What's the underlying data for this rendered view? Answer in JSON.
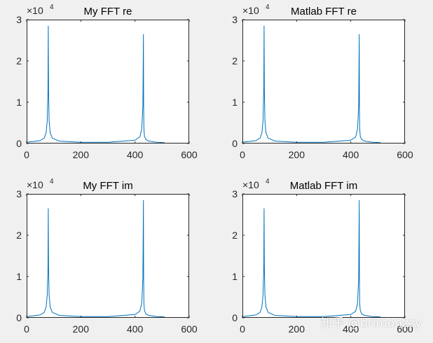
{
  "chart_data": [
    {
      "type": "line",
      "title": "My FFT re",
      "exponent_label": "×10",
      "exponent_power": "4",
      "xlim": [
        0,
        600
      ],
      "ylim": [
        0,
        30000
      ],
      "xticks": [
        "0",
        "200",
        "400",
        "600"
      ],
      "yticks": [
        "0",
        "1",
        "2",
        "3"
      ],
      "line_color": "#0072BD",
      "series": [
        {
          "name": "My FFT re",
          "x": [
            0,
            50,
            65,
            72,
            76,
            79,
            80,
            81,
            83,
            87,
            95,
            120,
            200,
            300,
            400,
            418,
            425,
            429,
            431,
            432,
            433,
            435,
            440,
            450,
            480,
            510
          ],
          "y": [
            300,
            700,
            1300,
            2600,
            5500,
            13000,
            28500,
            13000,
            5500,
            2600,
            1300,
            600,
            300,
            300,
            800,
            1600,
            3500,
            9000,
            26500,
            9000,
            3500,
            1800,
            1000,
            600,
            300,
            200
          ]
        }
      ]
    },
    {
      "type": "line",
      "title": "Matlab FFT re",
      "exponent_label": "×10",
      "exponent_power": "4",
      "xlim": [
        0,
        600
      ],
      "ylim": [
        0,
        30000
      ],
      "xticks": [
        "0",
        "200",
        "400",
        "600"
      ],
      "yticks": [
        "0",
        "1",
        "2",
        "3"
      ],
      "line_color": "#0072BD",
      "series": [
        {
          "name": "Matlab FFT re",
          "x": [
            0,
            50,
            65,
            72,
            76,
            79,
            80,
            81,
            83,
            87,
            95,
            120,
            200,
            300,
            400,
            418,
            425,
            429,
            431,
            432,
            433,
            435,
            440,
            450,
            480,
            510
          ],
          "y": [
            300,
            700,
            1300,
            2600,
            5500,
            13000,
            28500,
            13000,
            5500,
            2600,
            1300,
            600,
            300,
            300,
            800,
            1600,
            3500,
            9000,
            26500,
            9000,
            3500,
            1800,
            1000,
            600,
            300,
            200
          ]
        }
      ]
    },
    {
      "type": "line",
      "title": "My FFT im",
      "exponent_label": "×10",
      "exponent_power": "4",
      "xlim": [
        0,
        600
      ],
      "ylim": [
        0,
        30000
      ],
      "xticks": [
        "0",
        "200",
        "400",
        "600"
      ],
      "yticks": [
        "0",
        "1",
        "2",
        "3"
      ],
      "line_color": "#0072BD",
      "series": [
        {
          "name": "My FFT im",
          "x": [
            0,
            50,
            65,
            72,
            76,
            79,
            80,
            81,
            83,
            87,
            95,
            120,
            200,
            300,
            400,
            418,
            425,
            429,
            431,
            432,
            433,
            435,
            440,
            450,
            480,
            510
          ],
          "y": [
            300,
            700,
            1300,
            2600,
            5500,
            12000,
            26500,
            12000,
            5500,
            2600,
            1300,
            600,
            300,
            300,
            800,
            1600,
            3500,
            9500,
            28500,
            9500,
            3500,
            1800,
            1000,
            600,
            300,
            200
          ]
        }
      ]
    },
    {
      "type": "line",
      "title": "Matlab FFT im",
      "exponent_label": "×10",
      "exponent_power": "4",
      "xlim": [
        0,
        600
      ],
      "ylim": [
        0,
        30000
      ],
      "xticks": [
        "0",
        "200",
        "400",
        "600"
      ],
      "yticks": [
        "0",
        "1",
        "2",
        "3"
      ],
      "line_color": "#0072BD",
      "series": [
        {
          "name": "Matlab FFT im",
          "x": [
            0,
            50,
            65,
            72,
            76,
            79,
            80,
            81,
            83,
            87,
            95,
            120,
            200,
            300,
            400,
            418,
            425,
            429,
            431,
            432,
            433,
            435,
            440,
            450,
            480,
            510
          ],
          "y": [
            300,
            700,
            1300,
            2600,
            5500,
            12000,
            26500,
            12000,
            5500,
            2600,
            1300,
            600,
            300,
            300,
            800,
            1600,
            3500,
            9500,
            28500,
            9500,
            3500,
            1800,
            1000,
            600,
            300,
            200
          ]
        }
      ]
    }
  ],
  "watermark": "知乎 @brimonzzy"
}
